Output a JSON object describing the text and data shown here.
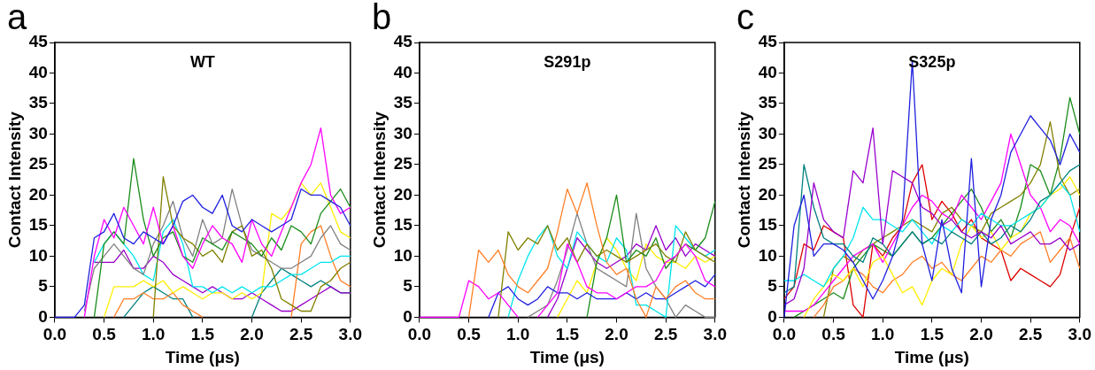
{
  "chart_data": [
    {
      "type": "line",
      "title": "WT",
      "xlabel": "Time (μs)",
      "ylabel": "Contact Intensity",
      "annotations": [
        "a"
      ],
      "xlim": [
        0,
        3
      ],
      "ylim": [
        0,
        45
      ],
      "xticks": [
        {
          "value": 0,
          "label": "0.0"
        },
        {
          "value": 0.5,
          "label": "0.5"
        },
        {
          "value": 1,
          "label": "1.0"
        },
        {
          "value": 1.5,
          "label": "1.5"
        },
        {
          "value": 2,
          "label": "2.0"
        },
        {
          "value": 2.5,
          "label": "2.5"
        },
        {
          "value": 3,
          "label": "3.0"
        }
      ],
      "yticks": [
        0,
        5,
        10,
        15,
        20,
        25,
        30,
        35,
        40,
        45
      ],
      "x": [
        0,
        0.1,
        0.2,
        0.3,
        0.4,
        0.5,
        0.6,
        0.7,
        0.8,
        0.9,
        1,
        1.1,
        1.2,
        1.3,
        1.4,
        1.5,
        1.6,
        1.7,
        1.8,
        1.9,
        2,
        2.1,
        2.2,
        2.3,
        2.4,
        2.5,
        2.6,
        2.7,
        2.8,
        2.9,
        3
      ],
      "series": [
        {
          "color": "#1f1fe0",
          "values": [
            0,
            0,
            0,
            2,
            13,
            14,
            17,
            13,
            12,
            14,
            13,
            12,
            15,
            19,
            20,
            18,
            17,
            20,
            15,
            14,
            16,
            15,
            14,
            15,
            16,
            21,
            20,
            20,
            19,
            18,
            15
          ]
        },
        {
          "color": "#ff00ff",
          "values": [
            null,
            null,
            null,
            0,
            10,
            16,
            13,
            18,
            15,
            12,
            18,
            12,
            15,
            10,
            8,
            12,
            15,
            13,
            12,
            9,
            16,
            12,
            10,
            14,
            18,
            22,
            25,
            31,
            20,
            17,
            18
          ]
        },
        {
          "color": "#1a8c1a",
          "values": [
            null,
            null,
            null,
            null,
            0,
            12,
            14,
            12,
            26,
            16,
            10,
            13,
            14,
            10,
            9,
            13,
            12,
            11,
            14,
            13,
            12,
            10,
            13,
            11,
            15,
            14,
            12,
            17,
            19,
            21,
            18
          ]
        },
        {
          "color": "#808000",
          "values": [
            null,
            null,
            null,
            null,
            null,
            null,
            null,
            null,
            null,
            null,
            0,
            23,
            15,
            13,
            12,
            10,
            11,
            9,
            14,
            15,
            10,
            11,
            8,
            3,
            2,
            1,
            1,
            5,
            6,
            8,
            9
          ]
        },
        {
          "color": "#808080",
          "values": [
            null,
            null,
            null,
            1,
            8,
            10,
            12,
            10,
            8,
            7,
            12,
            15,
            19,
            13,
            10,
            16,
            12,
            13,
            21,
            15,
            11,
            10,
            9,
            8,
            8,
            9,
            10,
            13,
            15,
            12,
            11
          ]
        },
        {
          "color": "#00e5ee",
          "values": [
            null,
            null,
            null,
            null,
            9,
            12,
            14,
            12,
            10,
            7,
            6,
            14,
            16,
            12,
            5,
            5,
            4,
            5,
            4,
            5,
            4,
            5,
            5,
            6,
            7,
            7,
            8,
            9,
            9,
            10,
            10
          ]
        },
        {
          "color": "#ffee00",
          "values": [
            null,
            null,
            null,
            null,
            null,
            0,
            5,
            5,
            5,
            6,
            5,
            6,
            4,
            5,
            4,
            3,
            4,
            4,
            3,
            4,
            3,
            4,
            17,
            16,
            18,
            22,
            20,
            22,
            18,
            14,
            13
          ]
        },
        {
          "color": "#ff7f27",
          "values": [
            null,
            null,
            null,
            null,
            null,
            null,
            0,
            3,
            3,
            4,
            3,
            3,
            4,
            2,
            1,
            0,
            null,
            null,
            null,
            null,
            null,
            null,
            null,
            null,
            0,
            12,
            14,
            15,
            10,
            6,
            5
          ]
        },
        {
          "color": "#9900cc",
          "values": [
            null,
            null,
            null,
            null,
            9,
            9,
            9,
            11,
            8,
            8,
            10,
            9,
            7,
            6,
            5,
            4,
            5,
            4,
            3,
            3,
            4,
            3,
            2,
            1,
            1,
            2,
            3,
            4,
            5,
            4,
            4
          ]
        },
        {
          "color": "#008080",
          "values": [
            null,
            null,
            null,
            null,
            null,
            null,
            null,
            0,
            2,
            4,
            5,
            4,
            3,
            3,
            0,
            null,
            null,
            null,
            null,
            null,
            0,
            4,
            6,
            8,
            7,
            6,
            5,
            6,
            5,
            4,
            4
          ]
        }
      ]
    },
    {
      "type": "line",
      "title": "S291p",
      "xlabel": "Time (μs)",
      "ylabel": "Contact Intensity",
      "annotations": [
        "b"
      ],
      "xlim": [
        0,
        3
      ],
      "ylim": [
        0,
        45
      ],
      "xticks": [
        {
          "value": 0,
          "label": "0.0"
        },
        {
          "value": 0.5,
          "label": "0.5"
        },
        {
          "value": 1,
          "label": "1.0"
        },
        {
          "value": 1.5,
          "label": "1.5"
        },
        {
          "value": 2,
          "label": "2.0"
        },
        {
          "value": 2.5,
          "label": "2.5"
        },
        {
          "value": 3,
          "label": "3.0"
        }
      ],
      "yticks": [
        0,
        5,
        10,
        15,
        20,
        25,
        30,
        35,
        40,
        45
      ],
      "x": [
        0,
        0.1,
        0.2,
        0.3,
        0.4,
        0.5,
        0.6,
        0.7,
        0.8,
        0.9,
        1,
        1.1,
        1.2,
        1.3,
        1.4,
        1.5,
        1.6,
        1.7,
        1.8,
        1.9,
        2,
        2.1,
        2.2,
        2.3,
        2.4,
        2.5,
        2.6,
        2.7,
        2.8,
        2.9,
        3
      ],
      "series": [
        {
          "color": "#ff7f27",
          "values": [
            null,
            null,
            null,
            null,
            null,
            0,
            11,
            9,
            11,
            7,
            5,
            4,
            6,
            8,
            14,
            21,
            17,
            22,
            15,
            9,
            7,
            8,
            3,
            0,
            5,
            3,
            5,
            6,
            4,
            3,
            3
          ]
        },
        {
          "color": "#ff00ff",
          "values": [
            0,
            0,
            0,
            0,
            0,
            6,
            5,
            3,
            4,
            2,
            0,
            null,
            0,
            2,
            4,
            12,
            9,
            5,
            4,
            4,
            3,
            4,
            5,
            5,
            6,
            9,
            10,
            12,
            10,
            6,
            5
          ]
        },
        {
          "color": "#808000",
          "values": [
            null,
            null,
            null,
            null,
            null,
            null,
            null,
            null,
            0,
            14,
            11,
            13,
            12,
            15,
            11,
            13,
            9,
            12,
            10,
            11,
            10,
            9,
            10,
            11,
            12,
            10,
            9,
            14,
            11,
            10,
            9
          ]
        },
        {
          "color": "#1f1fe0",
          "values": [
            null,
            null,
            null,
            null,
            null,
            null,
            null,
            0,
            4,
            5,
            3,
            2,
            3,
            5,
            4,
            4,
            3,
            4,
            3,
            3,
            3,
            4,
            3,
            4,
            3,
            3,
            4,
            5,
            6,
            5,
            7
          ]
        },
        {
          "color": "#1a8c1a",
          "values": [
            null,
            null,
            null,
            null,
            null,
            null,
            null,
            null,
            null,
            null,
            null,
            null,
            null,
            null,
            null,
            null,
            null,
            0,
            9,
            13,
            20,
            9,
            11,
            10,
            13,
            8,
            10,
            12,
            11,
            13,
            19
          ]
        },
        {
          "color": "#00e5ee",
          "values": [
            null,
            null,
            null,
            null,
            null,
            null,
            null,
            null,
            null,
            0,
            6,
            10,
            13,
            15,
            10,
            8,
            14,
            12,
            10,
            9,
            13,
            11,
            2,
            2,
            1,
            0,
            15,
            13,
            11,
            10,
            11
          ]
        },
        {
          "color": "#808080",
          "values": [
            null,
            null,
            null,
            null,
            null,
            null,
            null,
            null,
            null,
            null,
            null,
            0,
            1,
            2,
            6,
            11,
            17,
            12,
            8,
            7,
            6,
            5,
            17,
            8,
            5,
            3,
            0,
            2,
            1,
            0,
            0
          ]
        },
        {
          "color": "#9900cc",
          "values": [
            null,
            null,
            null,
            null,
            null,
            null,
            null,
            null,
            null,
            null,
            null,
            null,
            null,
            0,
            3,
            8,
            13,
            11,
            9,
            8,
            9,
            10,
            12,
            11,
            15,
            11,
            13,
            10,
            12,
            11,
            10
          ]
        },
        {
          "color": "#ffee00",
          "values": [
            null,
            null,
            null,
            null,
            null,
            null,
            null,
            null,
            null,
            null,
            null,
            null,
            null,
            null,
            0,
            3,
            6,
            4,
            9,
            13,
            11,
            8,
            6,
            12,
            10,
            9,
            9,
            8,
            10,
            9,
            10
          ]
        }
      ]
    },
    {
      "type": "line",
      "title": "S325p",
      "xlabel": "Time (μs)",
      "ylabel": "Contact Intensity",
      "annotations": [
        "c"
      ],
      "xlim": [
        0,
        3
      ],
      "ylim": [
        0,
        45
      ],
      "xticks": [
        {
          "value": 0,
          "label": "0.0"
        },
        {
          "value": 0.5,
          "label": "0.5"
        },
        {
          "value": 1,
          "label": "1.0"
        },
        {
          "value": 1.5,
          "label": "1.5"
        },
        {
          "value": 2,
          "label": "2.0"
        },
        {
          "value": 2.5,
          "label": "2.5"
        },
        {
          "value": 3,
          "label": "3.0"
        }
      ],
      "yticks": [
        0,
        5,
        10,
        15,
        20,
        25,
        30,
        35,
        40,
        45
      ],
      "x": [
        0,
        0.1,
        0.2,
        0.3,
        0.4,
        0.5,
        0.6,
        0.7,
        0.8,
        0.9,
        1,
        1.1,
        1.2,
        1.3,
        1.4,
        1.5,
        1.6,
        1.7,
        1.8,
        1.9,
        2,
        2.1,
        2.2,
        2.3,
        2.4,
        2.5,
        2.6,
        2.7,
        2.8,
        2.9,
        3
      ],
      "series": [
        {
          "color": "#1f1fe0",
          "values": [
            0,
            15,
            20,
            10,
            12,
            12,
            11,
            9,
            6,
            3,
            6,
            10,
            16,
            42,
            12,
            6,
            16,
            8,
            4,
            26,
            5,
            16,
            20,
            27,
            30,
            33,
            31,
            29,
            25,
            30,
            27
          ]
        },
        {
          "color": "#9900cc",
          "values": [
            2,
            3,
            8,
            22,
            16,
            14,
            13,
            24,
            22,
            31,
            12,
            24,
            23,
            22,
            18,
            17,
            15,
            16,
            14,
            13,
            14,
            13,
            15,
            12,
            13,
            14,
            12,
            12,
            13,
            11,
            12
          ]
        },
        {
          "color": "#008080",
          "values": [
            4,
            5,
            25,
            18,
            13,
            12,
            12,
            10,
            9,
            13,
            12,
            10,
            12,
            14,
            12,
            13,
            12,
            14,
            13,
            12,
            14,
            12,
            13,
            15,
            14,
            16,
            19,
            20,
            22,
            24,
            25
          ]
        },
        {
          "color": "#00e5ee",
          "values": [
            6,
            6,
            7,
            6,
            5,
            8,
            10,
            13,
            18,
            16,
            16,
            15,
            14,
            16,
            14,
            12,
            15,
            14,
            16,
            15,
            17,
            16,
            15,
            15,
            16,
            17,
            18,
            20,
            22,
            20,
            14
          ]
        },
        {
          "color": "#ffee00",
          "values": [
            null,
            null,
            0,
            3,
            5,
            7,
            6,
            8,
            5,
            9,
            10,
            7,
            4,
            5,
            2,
            6,
            8,
            7,
            12,
            15,
            13,
            14,
            11,
            13,
            14,
            17,
            18,
            20,
            21,
            23,
            20
          ]
        },
        {
          "color": "#ff7f27",
          "values": [
            null,
            null,
            null,
            0,
            2,
            5,
            6,
            8,
            7,
            5,
            4,
            6,
            7,
            9,
            10,
            8,
            9,
            7,
            6,
            8,
            10,
            9,
            11,
            10,
            12,
            13,
            14,
            9,
            11,
            13,
            8
          ]
        },
        {
          "color": "#ff00ff",
          "values": [
            1,
            1,
            1,
            2,
            4,
            6,
            8,
            10,
            11,
            12,
            9,
            12,
            15,
            18,
            20,
            19,
            17,
            16,
            20,
            18,
            16,
            19,
            22,
            30,
            25,
            20,
            18,
            14,
            16,
            15,
            12
          ]
        },
        {
          "color": "#808000",
          "values": [
            null,
            null,
            null,
            null,
            0,
            8,
            10,
            9,
            11,
            12,
            13,
            14,
            15,
            16,
            15,
            14,
            17,
            18,
            16,
            15,
            14,
            17,
            18,
            19,
            20,
            22,
            25,
            32,
            23,
            20,
            21
          ]
        },
        {
          "color": "#1a8c1a",
          "values": [
            null,
            0,
            1,
            2,
            3,
            4,
            3,
            8,
            10,
            12,
            11,
            10,
            12,
            14,
            12,
            13,
            15,
            17,
            19,
            21,
            18,
            14,
            16,
            13,
            18,
            25,
            24,
            20,
            26,
            36,
            30
          ]
        },
        {
          "color": "#dd0000",
          "values": [
            3,
            5,
            12,
            11,
            15,
            14,
            13,
            2,
            0,
            12,
            10,
            13,
            15,
            22,
            25,
            16,
            19,
            17,
            14,
            16,
            13,
            12,
            11,
            6,
            8,
            7,
            6,
            5,
            7,
            13,
            18
          ]
        }
      ]
    }
  ]
}
